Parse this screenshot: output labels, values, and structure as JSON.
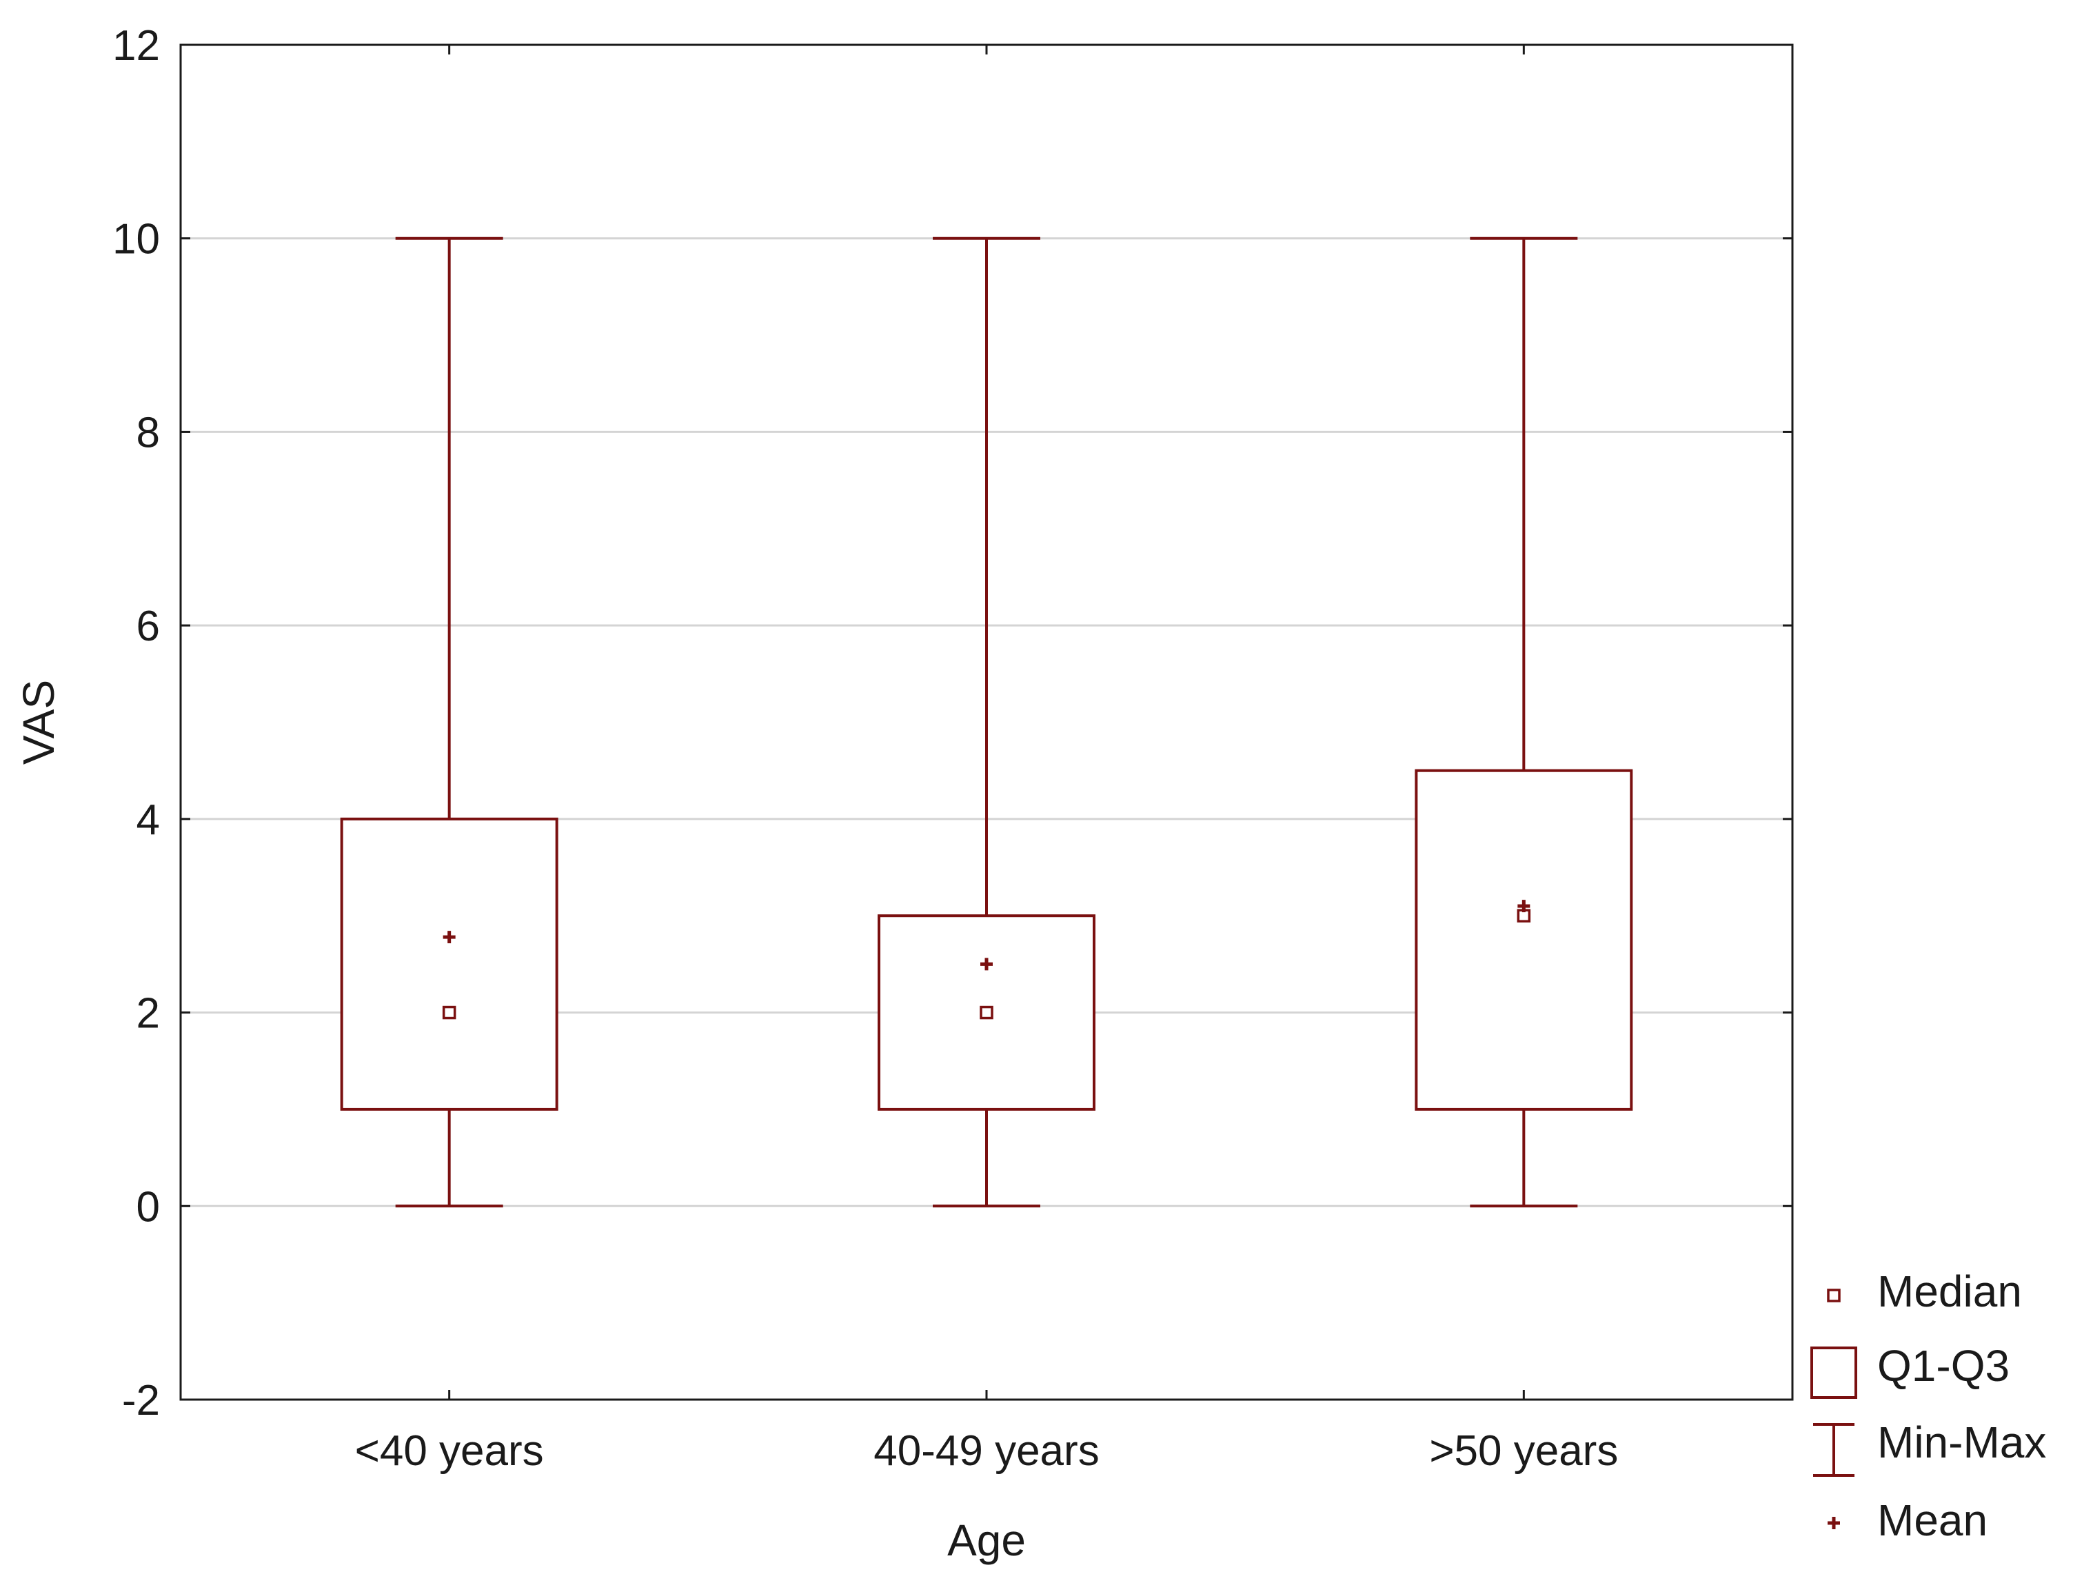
{
  "chart_data": {
    "type": "box",
    "title": "",
    "xlabel": "Age",
    "ylabel": "VAS",
    "ylim": [
      -2,
      12
    ],
    "yticks": [
      -2,
      0,
      2,
      4,
      6,
      8,
      10,
      12
    ],
    "grid": true,
    "legend_placement": "bottom-right, outside plot",
    "categories": [
      "<40 years",
      "40-49 years",
      ">50 years"
    ],
    "boxes": [
      {
        "category": "<40 years",
        "min": 0,
        "q1": 1,
        "median": 2,
        "q3": 4,
        "max": 10,
        "mean": 2.78
      },
      {
        "category": "40-49 years",
        "min": 0,
        "q1": 1,
        "median": 2,
        "q3": 3,
        "max": 10,
        "mean": 2.5
      },
      {
        "category": ">50 years",
        "min": 0,
        "q1": 1,
        "median": 3,
        "q3": 4.5,
        "max": 10,
        "mean": 3.1
      }
    ],
    "legend": [
      {
        "key": "median",
        "label": "Median"
      },
      {
        "key": "box",
        "label": "Q1-Q3"
      },
      {
        "key": "whisker",
        "label": "Min-Max"
      },
      {
        "key": "mean",
        "label": "Mean"
      }
    ],
    "colors": {
      "series": "#7a1010",
      "grid": "#d4d4d4",
      "axis": "#1a1a1a"
    }
  }
}
